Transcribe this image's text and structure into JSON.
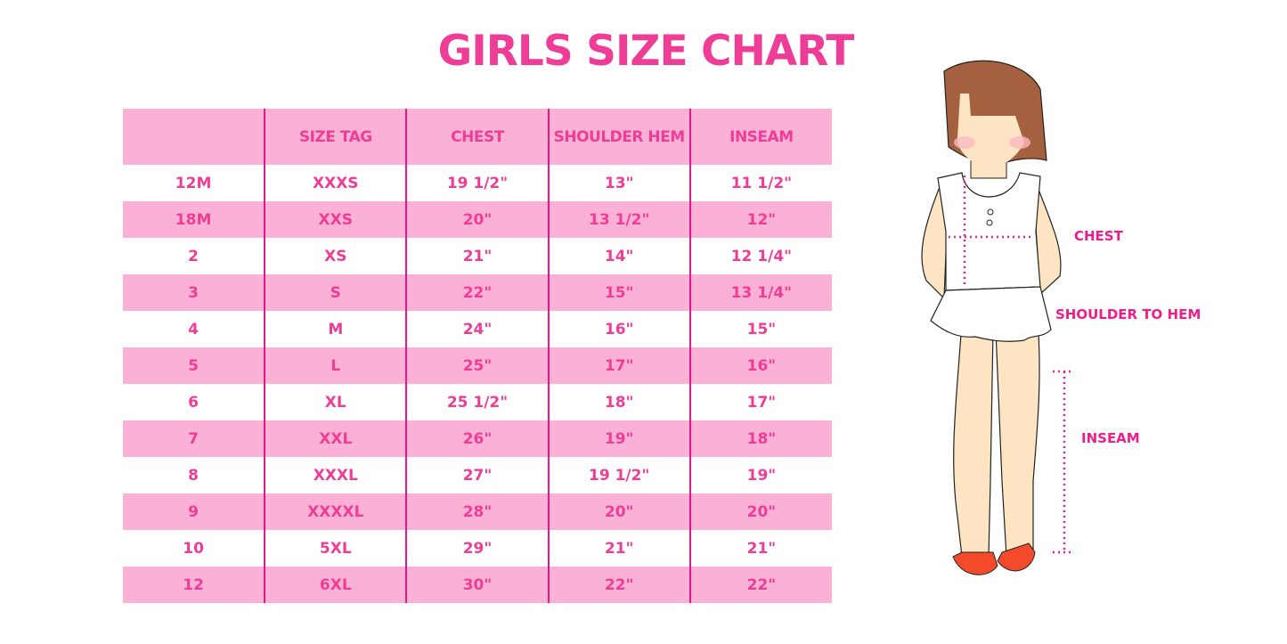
{
  "title": "GIRLS SIZE CHART",
  "table": {
    "headers": [
      "",
      "SIZE TAG",
      "CHEST",
      "SHOULDER HEM",
      "INSEAM"
    ],
    "rows": [
      [
        "12M",
        "XXXS",
        "19 1/2\"",
        "13\"",
        "11 1/2\""
      ],
      [
        "18M",
        "XXS",
        "20\"",
        "13 1/2\"",
        "12\""
      ],
      [
        "2",
        "XS",
        "21\"",
        "14\"",
        "12 1/4\""
      ],
      [
        "3",
        "S",
        "22\"",
        "15\"",
        "13 1/4\""
      ],
      [
        "4",
        "M",
        "24\"",
        "16\"",
        "15\""
      ],
      [
        "5",
        "L",
        "25\"",
        "17\"",
        "16\""
      ],
      [
        "6",
        "XL",
        "25 1/2\"",
        "18\"",
        "17\""
      ],
      [
        "7",
        "XXL",
        "26\"",
        "19\"",
        "18\""
      ],
      [
        "8",
        "XXXL",
        "27\"",
        "19 1/2\"",
        "19\""
      ],
      [
        "9",
        "XXXXL",
        "28\"",
        "20\"",
        "20\""
      ],
      [
        "10",
        "5XL",
        "29\"",
        "21\"",
        "21\""
      ],
      [
        "12",
        "6XL",
        "30\"",
        "22\"",
        "22\""
      ]
    ]
  },
  "figure": {
    "chest_label": "CHEST",
    "shoulder_label": "SHOULDER TO HEM",
    "inseam_label": "INSEAM"
  },
  "colors": {
    "accent": "#ee3d96",
    "row_pink": "#fbb1d6",
    "divider": "#e6168b"
  }
}
